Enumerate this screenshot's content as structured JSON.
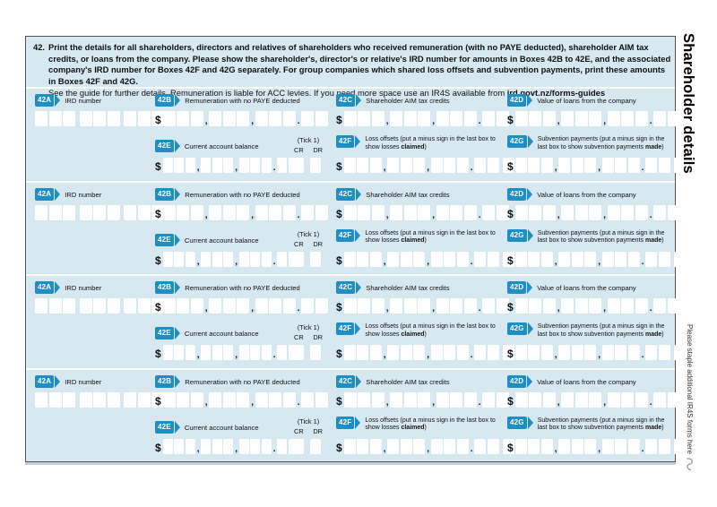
{
  "header": {
    "item_number": "42.",
    "instructions_bold": "Print the details for all shareholders, directors and relatives of shareholders who received remuneration (with no PAYE deducted), shareholder AIM tax credits, or loans from the company. Please show the shareholder's, director's or relative's IRD number for amounts in Boxes 42B to 42E, and the associated company's IRD number for Boxes 42F and 42G separately. For group companies which shared loss offsets and subvention payments, print these amounts in Boxes 42F and 42G.",
    "guide_note": "See the guide for further details. Remuneration is liable for ACC levies. If you need more space use an IR4S available from ",
    "guide_link": "ird.govt.nz/forms-guides"
  },
  "margin": {
    "title": "Shareholder details",
    "staple_note": "Please staple additional IR4S forms here"
  },
  "section_count": 4,
  "fields": {
    "a": {
      "code": "42A",
      "label": "IRD number"
    },
    "b": {
      "code": "42B",
      "label": "Remuneration with no PAYE deducted"
    },
    "c": {
      "code": "42C",
      "label": "Shareholder AIM tax credits"
    },
    "d": {
      "code": "42D",
      "label": "Value of loans from the company"
    },
    "e": {
      "code": "42E",
      "label": "Current account balance"
    },
    "f": {
      "code": "42F",
      "label_pre": "Loss offsets (put a minus sign in the last box to show losses ",
      "label_bold": "claimed",
      "label_post": ")"
    },
    "g": {
      "code": "42G",
      "label_pre": "Subvention payments (put a minus sign in the last box to show subvention payments ",
      "label_bold": "made",
      "label_post": ")"
    }
  },
  "tick": {
    "hint": "(Tick 1)",
    "cr": "CR",
    "dr": "DR"
  },
  "currency_symbol": "$",
  "separators": {
    "comma": ",",
    "point": "."
  },
  "colors": {
    "accent_blue": "#1e8ec4",
    "panel_blue": "#d8e8f1"
  }
}
